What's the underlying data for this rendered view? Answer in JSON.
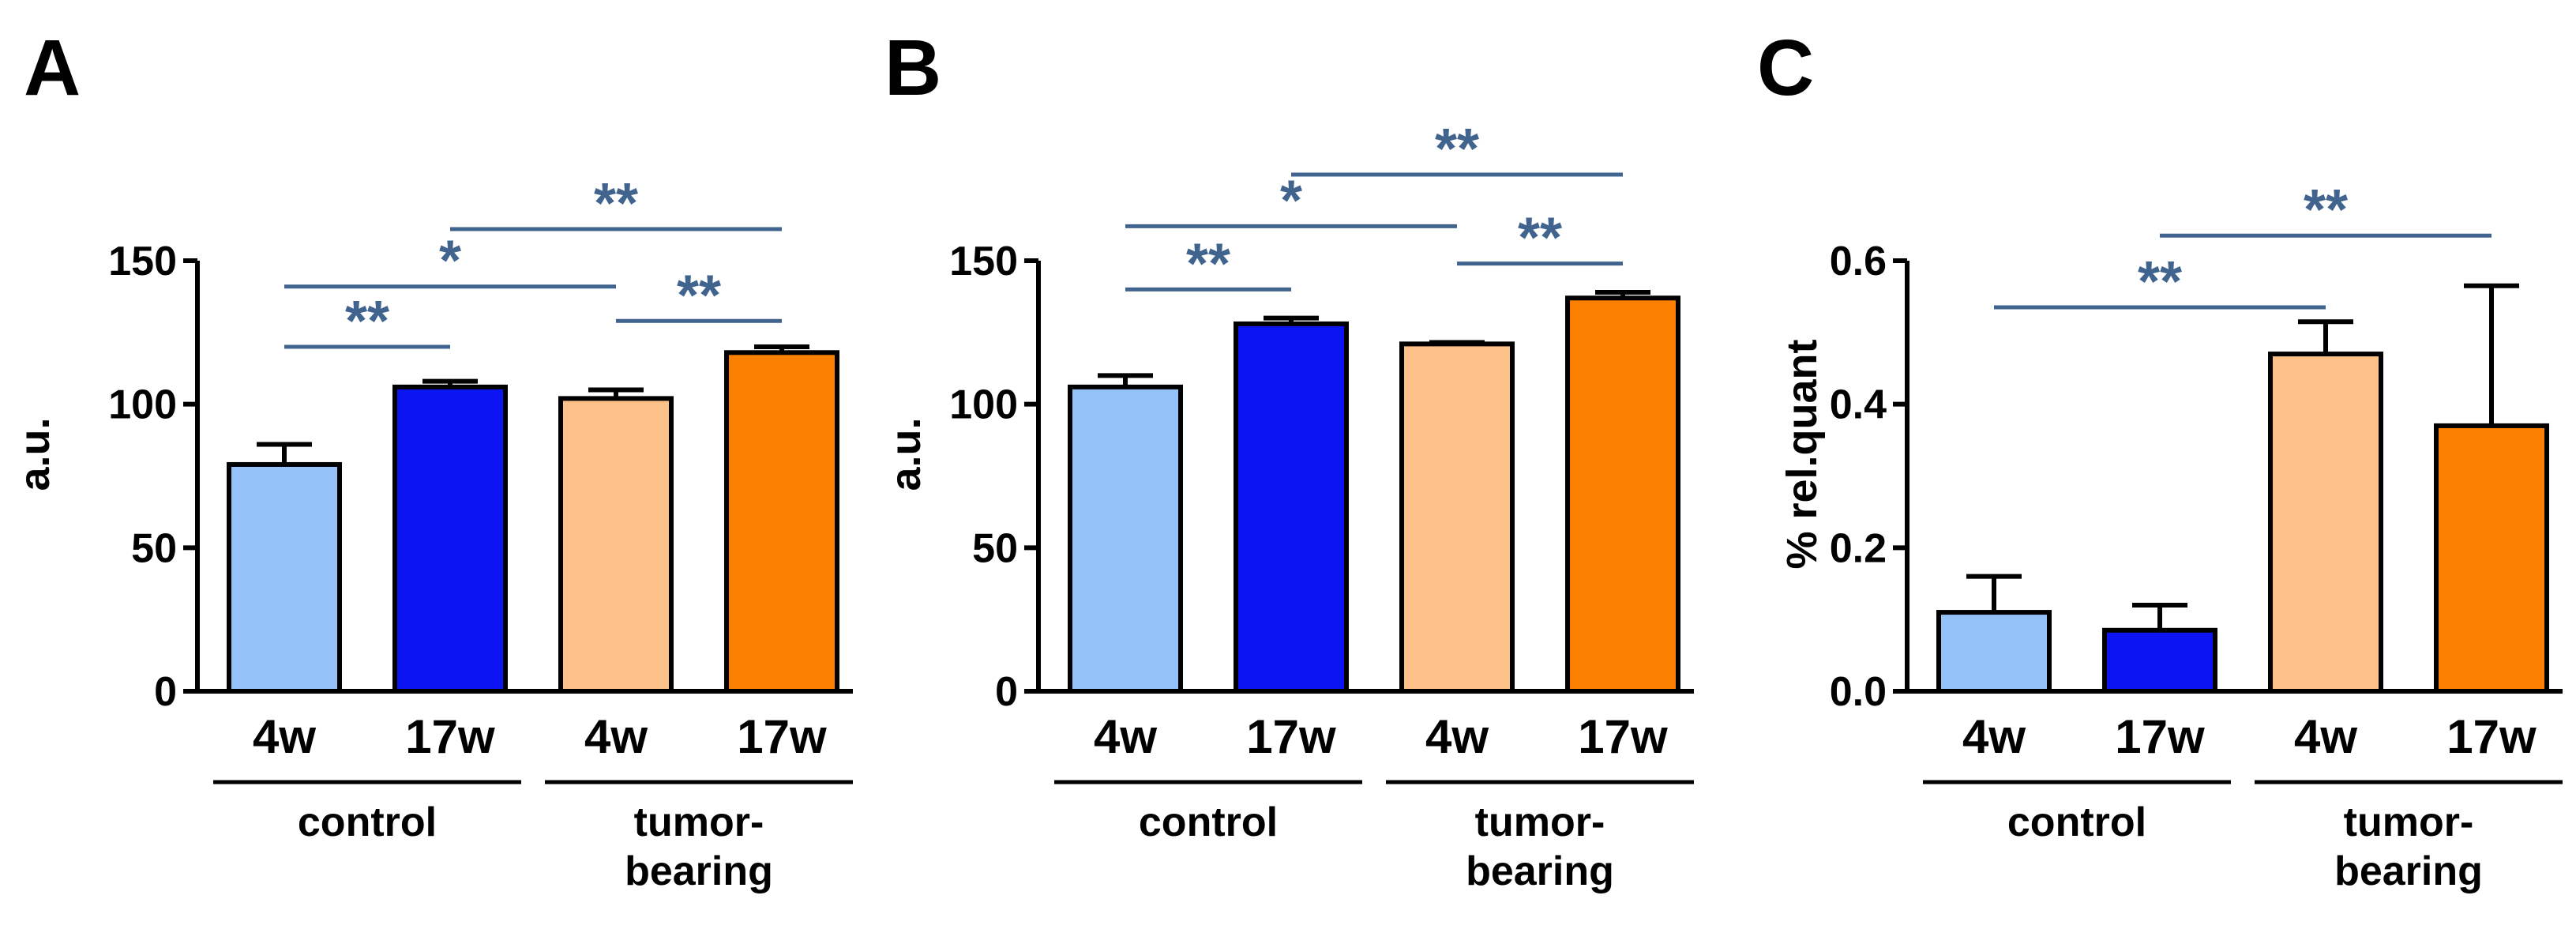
{
  "colors": {
    "sig": "#41648f",
    "axis": "#000000"
  },
  "chart_data": [
    {
      "type": "bar",
      "panel": "A",
      "ylabel": "a.u.",
      "ylim": [
        0,
        150
      ],
      "yticks": [
        0,
        50,
        100,
        150
      ],
      "categories": [
        "4w",
        "17w",
        "4w",
        "17w"
      ],
      "values": [
        79,
        106,
        102,
        118
      ],
      "errors": [
        7,
        2,
        3,
        2
      ],
      "bar_colors": [
        "#94c1f6",
        "#0d14f2",
        "#fcc189",
        "#fb7f00"
      ],
      "groups": [
        {
          "label_lines": [
            "control"
          ],
          "from": 0,
          "to": 1
        },
        {
          "label_lines": [
            "tumor-",
            "bearing"
          ],
          "from": 2,
          "to": 3
        }
      ],
      "significance": [
        {
          "from": 0,
          "to": 1,
          "label": "**",
          "level": 120
        },
        {
          "from": 0,
          "to": 2,
          "label": "*",
          "level": 141
        },
        {
          "from": 2,
          "to": 3,
          "label": "**",
          "level": 129
        },
        {
          "from": 1,
          "to": 3,
          "label": "**",
          "level": 161
        }
      ]
    },
    {
      "type": "bar",
      "panel": "B",
      "ylabel": "a.u.",
      "ylim": [
        0,
        150
      ],
      "yticks": [
        0,
        50,
        100,
        150
      ],
      "categories": [
        "4w",
        "17w",
        "4w",
        "17w"
      ],
      "values": [
        106,
        128,
        121,
        137
      ],
      "errors": [
        4,
        2,
        0.5,
        2
      ],
      "bar_colors": [
        "#94c1f6",
        "#0d14f2",
        "#fcc189",
        "#fb7f00"
      ],
      "groups": [
        {
          "label_lines": [
            "control"
          ],
          "from": 0,
          "to": 1
        },
        {
          "label_lines": [
            "tumor-",
            "bearing"
          ],
          "from": 2,
          "to": 3
        }
      ],
      "significance": [
        {
          "from": 0,
          "to": 1,
          "label": "**",
          "level": 140
        },
        {
          "from": 0,
          "to": 2,
          "label": "*",
          "level": 162
        },
        {
          "from": 2,
          "to": 3,
          "label": "**",
          "level": 149
        },
        {
          "from": 1,
          "to": 3,
          "label": "**",
          "level": 180
        }
      ]
    },
    {
      "type": "bar",
      "panel": "C",
      "ylabel": "% rel.quant",
      "ylim": [
        0,
        0.6
      ],
      "yticks": [
        0.0,
        0.2,
        0.4,
        0.6
      ],
      "tick_decimals": 1,
      "categories": [
        "4w",
        "17w",
        "4w",
        "17w"
      ],
      "values": [
        0.11,
        0.085,
        0.47,
        0.37
      ],
      "errors": [
        0.05,
        0.035,
        0.045,
        0.195
      ],
      "bar_colors": [
        "#94c1f6",
        "#0d14f2",
        "#fcc189",
        "#fb7f00"
      ],
      "groups": [
        {
          "label_lines": [
            "control"
          ],
          "from": 0,
          "to": 1
        },
        {
          "label_lines": [
            "tumor-",
            "bearing"
          ],
          "from": 2,
          "to": 3
        }
      ],
      "significance": [
        {
          "from": 0,
          "to": 2,
          "label": "**",
          "level": 0.535
        },
        {
          "from": 1,
          "to": 3,
          "label": "**",
          "level": 0.635
        }
      ]
    }
  ]
}
